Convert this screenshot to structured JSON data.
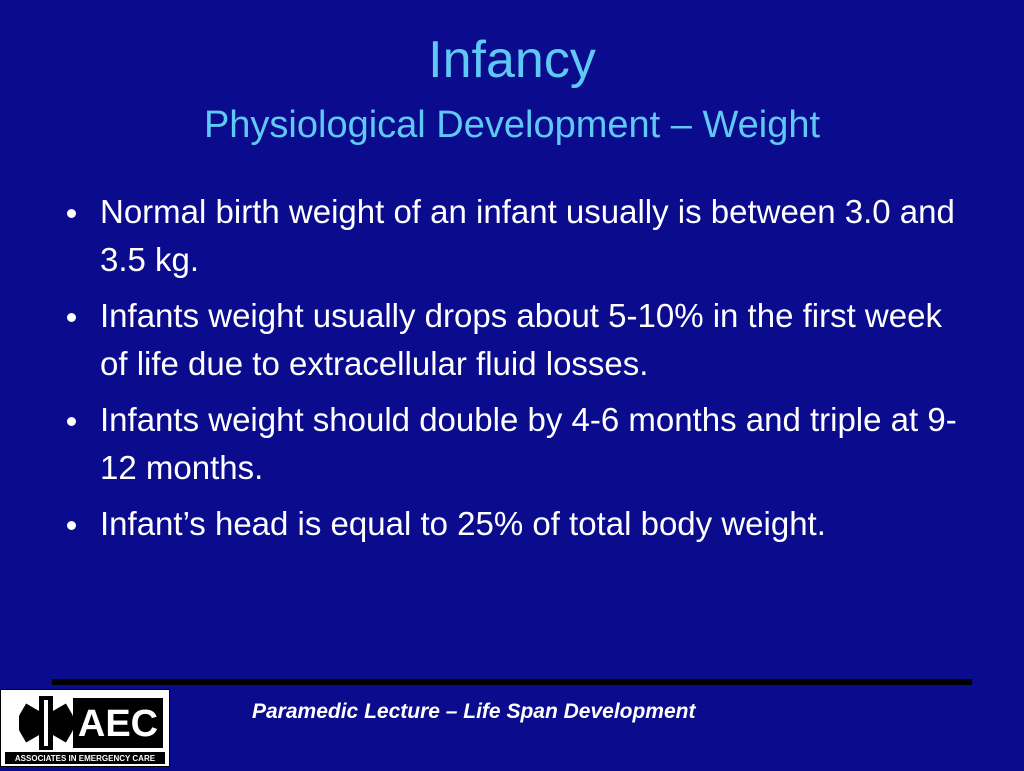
{
  "title": "Infancy",
  "subtitle": "Physiological Development – Weight",
  "bullets": [
    "Normal birth weight of an infant usually is between 3.0 and 3.5 kg.",
    "Infants weight usually drops about 5-10% in the first week of life due to extracellular fluid losses.",
    "Infants weight should double by 4-6 months and triple at 9-12 months.",
    "Infant’s head is equal to 25% of total body weight."
  ],
  "footer": "Paramedic Lecture – Life Span Development",
  "logo": {
    "text": "AEC",
    "caption": "ASSOCIATES IN EMERGENCY CARE"
  }
}
